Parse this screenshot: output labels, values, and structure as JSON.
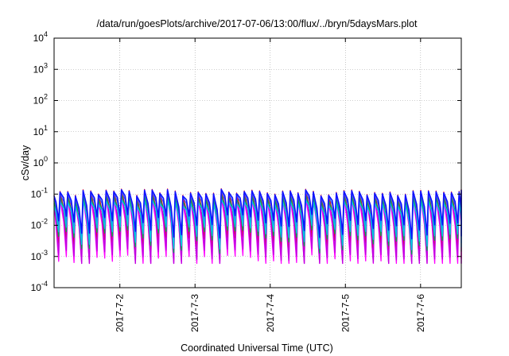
{
  "chart_data": {
    "type": "line",
    "title": "/data/run/goesPlots/archive/2017-07-06/13:00/flux/../bryn/5daysMars.plot",
    "xlabel": "Coordinated Universal Time (UTC)",
    "ylabel": "cSv/day",
    "yscale": "log",
    "ylim": [
      0.0001,
      10000
    ],
    "y_ticks": [
      {
        "value": 0.0001,
        "base": "10",
        "exp": "-4"
      },
      {
        "value": 0.001,
        "base": "10",
        "exp": "-3"
      },
      {
        "value": 0.01,
        "base": "10",
        "exp": "-2"
      },
      {
        "value": 0.1,
        "base": "10",
        "exp": "-1"
      },
      {
        "value": 1,
        "base": "10",
        "exp": "0"
      },
      {
        "value": 10,
        "base": "10",
        "exp": "1"
      },
      {
        "value": 100,
        "base": "10",
        "exp": "2"
      },
      {
        "value": 1000,
        "base": "10",
        "exp": "3"
      },
      {
        "value": 10000,
        "base": "10",
        "exp": "4"
      }
    ],
    "xlim": [
      "2017-07-01 03:00",
      "2017-07-06 13:00"
    ],
    "x_ticks": [
      {
        "value": "2017-07-02 00:00",
        "label": "2017-7-2"
      },
      {
        "value": "2017-07-03 00:00",
        "label": "2017-7-3"
      },
      {
        "value": "2017-07-04 00:00",
        "label": "2017-7-4"
      },
      {
        "value": "2017-07-05 00:00",
        "label": "2017-7-5"
      },
      {
        "value": "2017-07-06 00:00",
        "label": "2017-7-6"
      }
    ],
    "grid": true,
    "pattern": {
      "period_hours": 2.45,
      "peak_range": [
        0.09,
        0.15
      ],
      "trough_range": [
        0.0007,
        0.005
      ]
    },
    "series": [
      {
        "color": "#e5001c",
        "peak_scale": 1.0,
        "trough_scale": 0.95
      },
      {
        "color": "#ff00ff",
        "peak_scale": 0.55,
        "trough_scale": 0.25
      },
      {
        "color": "#c000e0",
        "peak_scale": 0.75,
        "trough_scale": 0.4
      },
      {
        "color": "#00b050",
        "peak_scale": 0.65,
        "trough_scale": 1.6
      },
      {
        "color": "#3366ff",
        "peak_scale": 0.9,
        "trough_scale": 3.0
      },
      {
        "color": "#00c8e8",
        "peak_scale": 0.45,
        "trough_scale": 2.2
      },
      {
        "color": "#1010ff",
        "peak_scale": 0.95,
        "trough_scale": 5.0
      }
    ]
  }
}
